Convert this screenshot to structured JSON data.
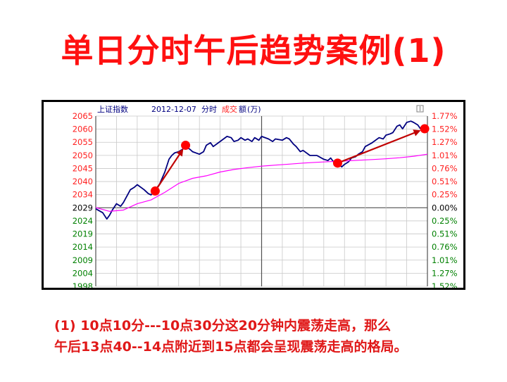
{
  "slide": {
    "title": "单日分时午后趋势案例(1)",
    "caption_line1": "(1) 10点10分---10点30分这20分钟内震荡走高，那么",
    "caption_line2": "午后13点40--14点附近到15点都会呈现震荡走高的格局。"
  },
  "chart_data": {
    "type": "line",
    "header": {
      "index_name": "上证指数",
      "date": "2012-12-07",
      "mode": "分时",
      "volume_label": "成交",
      "volume_label2": "额",
      "unit": "(万)"
    },
    "ylim": [
      1998,
      2065
    ],
    "prev_close": 2029,
    "y_ticks": [
      2065,
      2060,
      2055,
      2050,
      2045,
      2040,
      2034,
      2029,
      2024,
      2019,
      2014,
      2009,
      2004,
      1998
    ],
    "pct_ticks": [
      "1.77%",
      "1.52%",
      "1.27%",
      "1.01%",
      "0.76%",
      "0.51%",
      "0.25%",
      "0.00%",
      "0.25%",
      "0.51%",
      "0.76%",
      "1.01%",
      "1.27%",
      "1.52%"
    ],
    "x_range": [
      0,
      240
    ],
    "colors": {
      "up": "#ff2020",
      "down": "#008000",
      "neutral": "#000000",
      "price": "#000080",
      "avg": "#ff00ff",
      "grid": "#c8c8c8",
      "marker": "#ff0000",
      "arrow": "#c00000"
    },
    "series": [
      {
        "role": "price",
        "x": [
          0,
          5,
          8,
          10,
          12,
          15,
          18,
          20,
          25,
          28,
          30,
          35,
          38,
          40,
          43,
          46,
          50,
          53,
          55,
          57,
          60,
          63,
          65,
          68,
          70,
          75,
          78,
          80,
          83,
          85,
          90,
          95,
          98,
          100,
          103,
          105,
          108,
          110,
          113,
          115,
          118,
          120,
          125,
          128,
          130,
          135,
          138,
          140,
          143,
          145,
          148,
          150,
          155,
          160,
          165,
          168,
          170,
          172,
          175,
          178,
          180,
          183,
          185,
          188,
          190,
          193,
          195,
          200,
          205,
          208,
          210,
          213,
          215,
          218,
          220,
          222,
          225,
          228,
          230,
          233,
          235,
          238,
          240
        ],
        "values": [
          2028.5,
          2027,
          2024.5,
          2026,
          2028,
          2030.5,
          2029.5,
          2031,
          2036,
          2037,
          2038,
          2036,
          2034.5,
          2034,
          2036,
          2038,
          2043,
          2048,
          2049.5,
          2050.5,
          2051,
          2052,
          2053,
          2052,
          2051,
          2050,
          2051,
          2053.5,
          2054.5,
          2053,
          2055,
          2057,
          2056.5,
          2055,
          2055.5,
          2056.5,
          2055.5,
          2056,
          2055,
          2056.5,
          2055.5,
          2057,
          2056,
          2055,
          2056,
          2055.5,
          2056.5,
          2056,
          2054,
          2053,
          2051,
          2051.5,
          2049.5,
          2049.5,
          2048,
          2047.5,
          2048.5,
          2047,
          2046.5,
          2045,
          2046,
          2047,
          2048.5,
          2049,
          2050,
          2051,
          2053,
          2054.5,
          2056.5,
          2056,
          2057.5,
          2058,
          2058.5,
          2061,
          2061.5,
          2060,
          2062.5,
          2063,
          2062.5,
          2061.5,
          2060,
          2059.5,
          2060.5
        ]
      },
      {
        "role": "average",
        "x": [
          0,
          10,
          20,
          30,
          40,
          50,
          60,
          70,
          80,
          90,
          100,
          110,
          120,
          130,
          140,
          150,
          160,
          170,
          180,
          190,
          200,
          210,
          220,
          230,
          240
        ],
        "values": [
          2029,
          2027.5,
          2028,
          2030.5,
          2032,
          2035,
          2038.5,
          2040.5,
          2041.5,
          2043,
          2044,
          2044.7,
          2045.3,
          2045.7,
          2046.1,
          2046.5,
          2046.8,
          2047.1,
          2047.3,
          2047.6,
          2047.9,
          2048.2,
          2048.6,
          2049.2,
          2050
        ]
      }
    ],
    "annotations": [
      {
        "type": "arrow",
        "from": {
          "x": 43,
          "y": 2035.5
        },
        "to": {
          "x": 65,
          "y": 2053.5
        }
      },
      {
        "type": "arrow",
        "from": {
          "x": 175,
          "y": 2046.5
        },
        "to": {
          "x": 238,
          "y": 2060
        }
      }
    ]
  }
}
